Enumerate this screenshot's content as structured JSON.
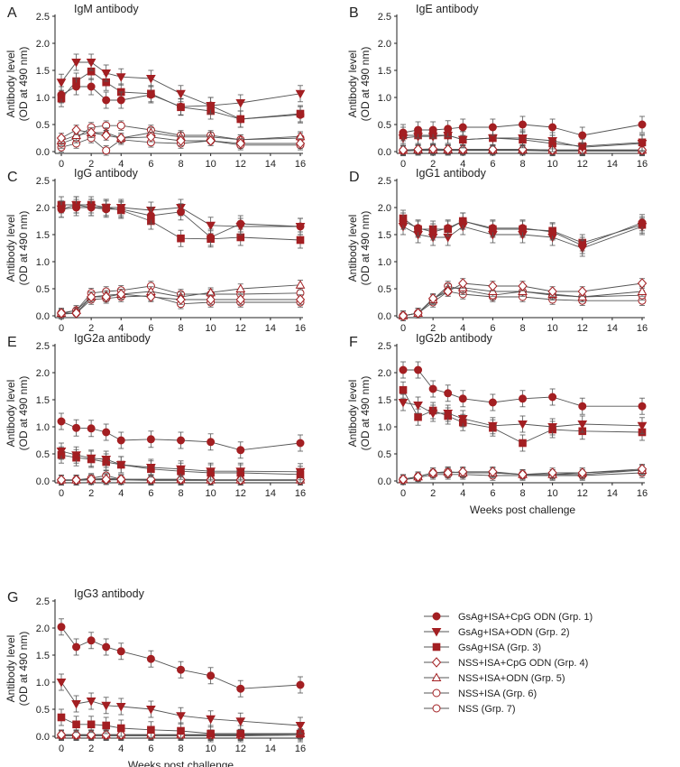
{
  "figure": {
    "y_axis_title_line1": "Antibody level",
    "y_axis_title_line2": "(OD at 490 nm)",
    "x_axis_title": "Weeks post challenge"
  },
  "legend": [
    {
      "group": 1,
      "label": "GsAg+ISA+CpG ODN (Grp. 1)",
      "marker": "circle",
      "filled": true
    },
    {
      "group": 2,
      "label": "GsAg+ISA+ODN (Grp. 2)",
      "marker": "triangle-down",
      "filled": true
    },
    {
      "group": 3,
      "label": "GsAg+ISA (Grp. 3)",
      "marker": "square",
      "filled": true
    },
    {
      "group": 4,
      "label": "NSS+ISA+CpG ODN (Grp. 4)",
      "marker": "diamond",
      "filled": false
    },
    {
      "group": 5,
      "label": "NSS+ISA+ODN (Grp. 5)",
      "marker": "triangle-up",
      "filled": false
    },
    {
      "group": 6,
      "label": "NSS+ISA (Grp. 6)",
      "marker": "circle",
      "filled": false
    },
    {
      "group": 7,
      "label": "NSS (Grp. 7)",
      "marker": "circle",
      "filled": false
    }
  ],
  "colors": {
    "marker": "#a31f22",
    "line": "#555555",
    "axis": "#222222"
  },
  "chart_data": [
    {
      "panel": "A",
      "type": "line",
      "title": "IgM antibody",
      "x": [
        0,
        1,
        2,
        3,
        4,
        6,
        8,
        10,
        12,
        16
      ],
      "ylim": [
        0,
        2.5
      ],
      "yticks": [
        0,
        0.5,
        1.0,
        1.5,
        2.0,
        2.5
      ],
      "xticks": [
        0,
        2,
        4,
        6,
        8,
        10,
        12,
        14,
        16
      ],
      "series": [
        {
          "group": 1,
          "values": [
            1.05,
            1.2,
            1.2,
            0.95,
            0.95,
            1.05,
            0.83,
            0.85,
            0.6,
            0.68
          ]
        },
        {
          "group": 2,
          "values": [
            1.28,
            1.65,
            1.65,
            1.45,
            1.38,
            1.35,
            1.07,
            0.85,
            0.9,
            1.07
          ]
        },
        {
          "group": 3,
          "values": [
            0.98,
            1.3,
            1.48,
            1.28,
            1.1,
            1.07,
            0.82,
            0.75,
            0.6,
            0.7
          ]
        },
        {
          "group": 4,
          "values": [
            0.25,
            0.4,
            0.35,
            0.3,
            0.25,
            0.27,
            0.2,
            0.2,
            0.15,
            0.15
          ]
        },
        {
          "group": 5,
          "values": [
            0.2,
            0.3,
            0.35,
            0.35,
            0.25,
            0.35,
            0.27,
            0.27,
            0.22,
            0.28
          ]
        },
        {
          "group": 6,
          "values": [
            0.15,
            0.25,
            0.45,
            0.48,
            0.48,
            0.4,
            0.3,
            0.3,
            0.22,
            0.25
          ]
        },
        {
          "group": 7,
          "values": [
            0.08,
            0.15,
            0.25,
            0.02,
            0.22,
            0.17,
            0.15,
            0.2,
            0.12,
            0.12
          ]
        }
      ]
    },
    {
      "panel": "B",
      "type": "line",
      "title": "IgE antibody",
      "x": [
        0,
        1,
        2,
        3,
        4,
        6,
        8,
        10,
        12,
        16
      ],
      "ylim": [
        0,
        2.5
      ],
      "yticks": [
        0,
        0.5,
        1.0,
        1.5,
        2.0,
        2.5
      ],
      "xticks": [
        0,
        2,
        4,
        6,
        8,
        10,
        12,
        14,
        16
      ],
      "series": [
        {
          "group": 1,
          "values": [
            0.35,
            0.4,
            0.4,
            0.42,
            0.45,
            0.45,
            0.5,
            0.45,
            0.3,
            0.5
          ]
        },
        {
          "group": 2,
          "values": [
            0.25,
            0.28,
            0.28,
            0.3,
            0.22,
            0.25,
            0.25,
            0.2,
            0.08,
            0.15
          ]
        },
        {
          "group": 3,
          "values": [
            0.3,
            0.3,
            0.3,
            0.3,
            0.22,
            0.25,
            0.22,
            0.15,
            0.1,
            0.17
          ]
        },
        {
          "group": 4,
          "values": [
            0.03,
            0.04,
            0.05,
            0.04,
            0.04,
            0.04,
            0.04,
            0.03,
            0.03,
            0.03
          ]
        },
        {
          "group": 5,
          "values": [
            0.03,
            0.04,
            0.04,
            0.04,
            0.04,
            0.04,
            0.04,
            0.03,
            0.03,
            0.03
          ]
        },
        {
          "group": 6,
          "values": [
            0.02,
            0.03,
            0.03,
            0.03,
            0.03,
            0.03,
            0.03,
            0.02,
            0.02,
            0.02
          ]
        },
        {
          "group": 7,
          "values": [
            0.01,
            0.02,
            0.02,
            0.02,
            0.02,
            0.02,
            0.02,
            0.01,
            0.01,
            0.01
          ]
        }
      ]
    },
    {
      "panel": "C",
      "type": "line",
      "title": "IgG antibody",
      "x": [
        0,
        1,
        2,
        3,
        4,
        6,
        8,
        10,
        12,
        16
      ],
      "ylim": [
        0,
        2.5
      ],
      "yticks": [
        0,
        0.5,
        1.0,
        1.5,
        2.0,
        2.5
      ],
      "xticks": [
        0,
        2,
        4,
        6,
        8,
        10,
        12,
        14,
        16
      ],
      "series": [
        {
          "group": 1,
          "values": [
            1.97,
            2.0,
            2.0,
            1.97,
            1.97,
            1.85,
            1.92,
            1.45,
            1.7,
            1.65
          ]
        },
        {
          "group": 2,
          "values": [
            1.97,
            2.05,
            2.0,
            2.0,
            2.0,
            1.95,
            2.0,
            1.67,
            1.65,
            1.65
          ]
        },
        {
          "group": 3,
          "values": [
            2.05,
            2.05,
            2.05,
            2.0,
            1.95,
            1.75,
            1.43,
            1.42,
            1.45,
            1.4
          ]
        },
        {
          "group": 4,
          "values": [
            0.05,
            0.05,
            0.35,
            0.35,
            0.4,
            0.35,
            0.3,
            0.3,
            0.3,
            0.3
          ]
        },
        {
          "group": 5,
          "values": [
            0.05,
            0.1,
            0.35,
            0.38,
            0.4,
            0.45,
            0.35,
            0.43,
            0.5,
            0.57
          ]
        },
        {
          "group": 6,
          "values": [
            0.05,
            0.1,
            0.42,
            0.45,
            0.47,
            0.55,
            0.4,
            0.4,
            0.4,
            0.42
          ]
        },
        {
          "group": 7,
          "values": [
            0.03,
            0.05,
            0.3,
            0.32,
            0.35,
            0.37,
            0.22,
            0.25,
            0.25,
            0.25
          ]
        }
      ]
    },
    {
      "panel": "D",
      "type": "line",
      "title": "IgG1 antibody",
      "x": [
        0,
        1,
        2,
        3,
        4,
        6,
        8,
        10,
        12,
        16
      ],
      "ylim": [
        0,
        2.5
      ],
      "yticks": [
        0,
        0.5,
        1.0,
        1.5,
        2.0,
        2.5
      ],
      "xticks": [
        0,
        2,
        4,
        6,
        8,
        10,
        12,
        14,
        16
      ],
      "series": [
        {
          "group": 1,
          "values": [
            1.75,
            1.62,
            1.55,
            1.62,
            1.75,
            1.62,
            1.62,
            1.55,
            1.3,
            1.72
          ]
        },
        {
          "group": 2,
          "values": [
            1.65,
            1.5,
            1.45,
            1.45,
            1.65,
            1.5,
            1.5,
            1.45,
            1.25,
            1.65
          ]
        },
        {
          "group": 3,
          "values": [
            1.8,
            1.6,
            1.6,
            1.6,
            1.75,
            1.6,
            1.6,
            1.57,
            1.35,
            1.68
          ]
        },
        {
          "group": 4,
          "values": [
            0,
            0.05,
            0.32,
            0.45,
            0.6,
            0.55,
            0.55,
            0.45,
            0.45,
            0.6
          ]
        },
        {
          "group": 5,
          "values": [
            0,
            0.05,
            0.3,
            0.5,
            0.52,
            0.45,
            0.45,
            0.4,
            0.35,
            0.45
          ]
        },
        {
          "group": 6,
          "values": [
            0,
            0.05,
            0.3,
            0.55,
            0.48,
            0.38,
            0.45,
            0.38,
            0.35,
            0.38
          ]
        },
        {
          "group": 7,
          "values": [
            0,
            0.05,
            0.25,
            0.45,
            0.4,
            0.35,
            0.35,
            0.3,
            0.28,
            0.28
          ]
        }
      ]
    },
    {
      "panel": "E",
      "type": "line",
      "title": "IgG2a antibody",
      "x": [
        0,
        1,
        2,
        3,
        4,
        6,
        8,
        10,
        12,
        16
      ],
      "ylim": [
        0,
        2.5
      ],
      "yticks": [
        0,
        0.5,
        1.0,
        1.5,
        2.0,
        2.5
      ],
      "xticks": [
        0,
        2,
        4,
        6,
        8,
        10,
        12,
        14,
        16
      ],
      "series": [
        {
          "group": 1,
          "values": [
            1.1,
            0.98,
            0.97,
            0.9,
            0.75,
            0.77,
            0.75,
            0.72,
            0.57,
            0.7
          ]
        },
        {
          "group": 2,
          "values": [
            0.55,
            0.48,
            0.42,
            0.4,
            0.3,
            0.25,
            0.22,
            0.18,
            0.18,
            0.17
          ]
        },
        {
          "group": 3,
          "values": [
            0.48,
            0.43,
            0.4,
            0.35,
            0.3,
            0.22,
            0.18,
            0.15,
            0.15,
            0.12
          ]
        },
        {
          "group": 4,
          "values": [
            0.02,
            0.02,
            0.03,
            0.03,
            0.03,
            0.03,
            0.03,
            0.02,
            0.02,
            0.02
          ]
        },
        {
          "group": 5,
          "values": [
            0.02,
            0.02,
            0.03,
            0.05,
            0.03,
            0.03,
            0.03,
            0.02,
            0.02,
            0.02
          ]
        },
        {
          "group": 6,
          "values": [
            0.01,
            0.02,
            0.05,
            0.1,
            0.03,
            0.02,
            0.02,
            0.02,
            0.02,
            0.02
          ]
        },
        {
          "group": 7,
          "values": [
            0.01,
            0.01,
            0.02,
            0.02,
            0.02,
            0.01,
            0.01,
            0.01,
            0.01,
            0.01
          ]
        }
      ]
    },
    {
      "panel": "F",
      "type": "line",
      "title": "IgG2b antibody",
      "x": [
        0,
        1,
        2,
        3,
        4,
        6,
        8,
        10,
        12,
        16
      ],
      "ylim": [
        0,
        2.5
      ],
      "yticks": [
        0,
        0.5,
        1.0,
        1.5,
        2.0,
        2.5
      ],
      "xticks": [
        0,
        2,
        4,
        6,
        8,
        10,
        12,
        14,
        16
      ],
      "series": [
        {
          "group": 1,
          "values": [
            2.05,
            2.05,
            1.7,
            1.62,
            1.52,
            1.45,
            1.52,
            1.55,
            1.38,
            1.38
          ]
        },
        {
          "group": 2,
          "values": [
            1.45,
            1.4,
            1.25,
            1.25,
            1.15,
            1.02,
            1.05,
            1.0,
            1.05,
            1.02
          ]
        },
        {
          "group": 3,
          "values": [
            1.68,
            1.18,
            1.3,
            1.2,
            1.08,
            0.98,
            0.7,
            0.95,
            0.92,
            0.9
          ]
        },
        {
          "group": 4,
          "values": [
            0.03,
            0.08,
            0.15,
            0.15,
            0.17,
            0.17,
            0.12,
            0.15,
            0.15,
            0.22
          ]
        },
        {
          "group": 5,
          "values": [
            0.03,
            0.08,
            0.15,
            0.17,
            0.15,
            0.15,
            0.12,
            0.12,
            0.15,
            0.2
          ]
        },
        {
          "group": 6,
          "values": [
            0.03,
            0.08,
            0.15,
            0.17,
            0.15,
            0.15,
            0.12,
            0.12,
            0.12,
            0.2
          ]
        },
        {
          "group": 7,
          "values": [
            0.02,
            0.06,
            0.12,
            0.12,
            0.12,
            0.1,
            0.1,
            0.1,
            0.1,
            0.15
          ]
        }
      ]
    },
    {
      "panel": "G",
      "type": "line",
      "title": "IgG3 antibody",
      "x": [
        0,
        1,
        2,
        3,
        4,
        6,
        8,
        10,
        12,
        16
      ],
      "ylim": [
        0,
        2.5
      ],
      "yticks": [
        0,
        0.5,
        1.0,
        1.5,
        2.0,
        2.5
      ],
      "xticks": [
        0,
        2,
        4,
        6,
        8,
        10,
        12,
        14,
        16
      ],
      "series": [
        {
          "group": 1,
          "values": [
            2.02,
            1.65,
            1.77,
            1.65,
            1.57,
            1.43,
            1.23,
            1.12,
            0.88,
            0.95
          ]
        },
        {
          "group": 2,
          "values": [
            1.0,
            0.6,
            0.65,
            0.57,
            0.55,
            0.5,
            0.38,
            0.32,
            0.28,
            0.2
          ]
        },
        {
          "group": 3,
          "values": [
            0.35,
            0.22,
            0.22,
            0.2,
            0.15,
            0.12,
            0.1,
            0.05,
            0.05,
            0.05
          ]
        },
        {
          "group": 4,
          "values": [
            0.03,
            0.03,
            0.03,
            0.03,
            0.03,
            0.03,
            0.03,
            0.03,
            0.03,
            0.05
          ]
        },
        {
          "group": 5,
          "values": [
            0.03,
            0.03,
            0.03,
            0.03,
            0.03,
            0.03,
            0.03,
            0.03,
            0.03,
            0.05
          ]
        },
        {
          "group": 6,
          "values": [
            0.02,
            0.02,
            0.02,
            0.02,
            0.02,
            0.02,
            0.02,
            0.02,
            0.02,
            0.04
          ]
        },
        {
          "group": 7,
          "values": [
            0.01,
            0.01,
            0.01,
            0.01,
            0.01,
            0.01,
            0.01,
            0.01,
            0.01,
            0.02
          ]
        }
      ]
    }
  ]
}
